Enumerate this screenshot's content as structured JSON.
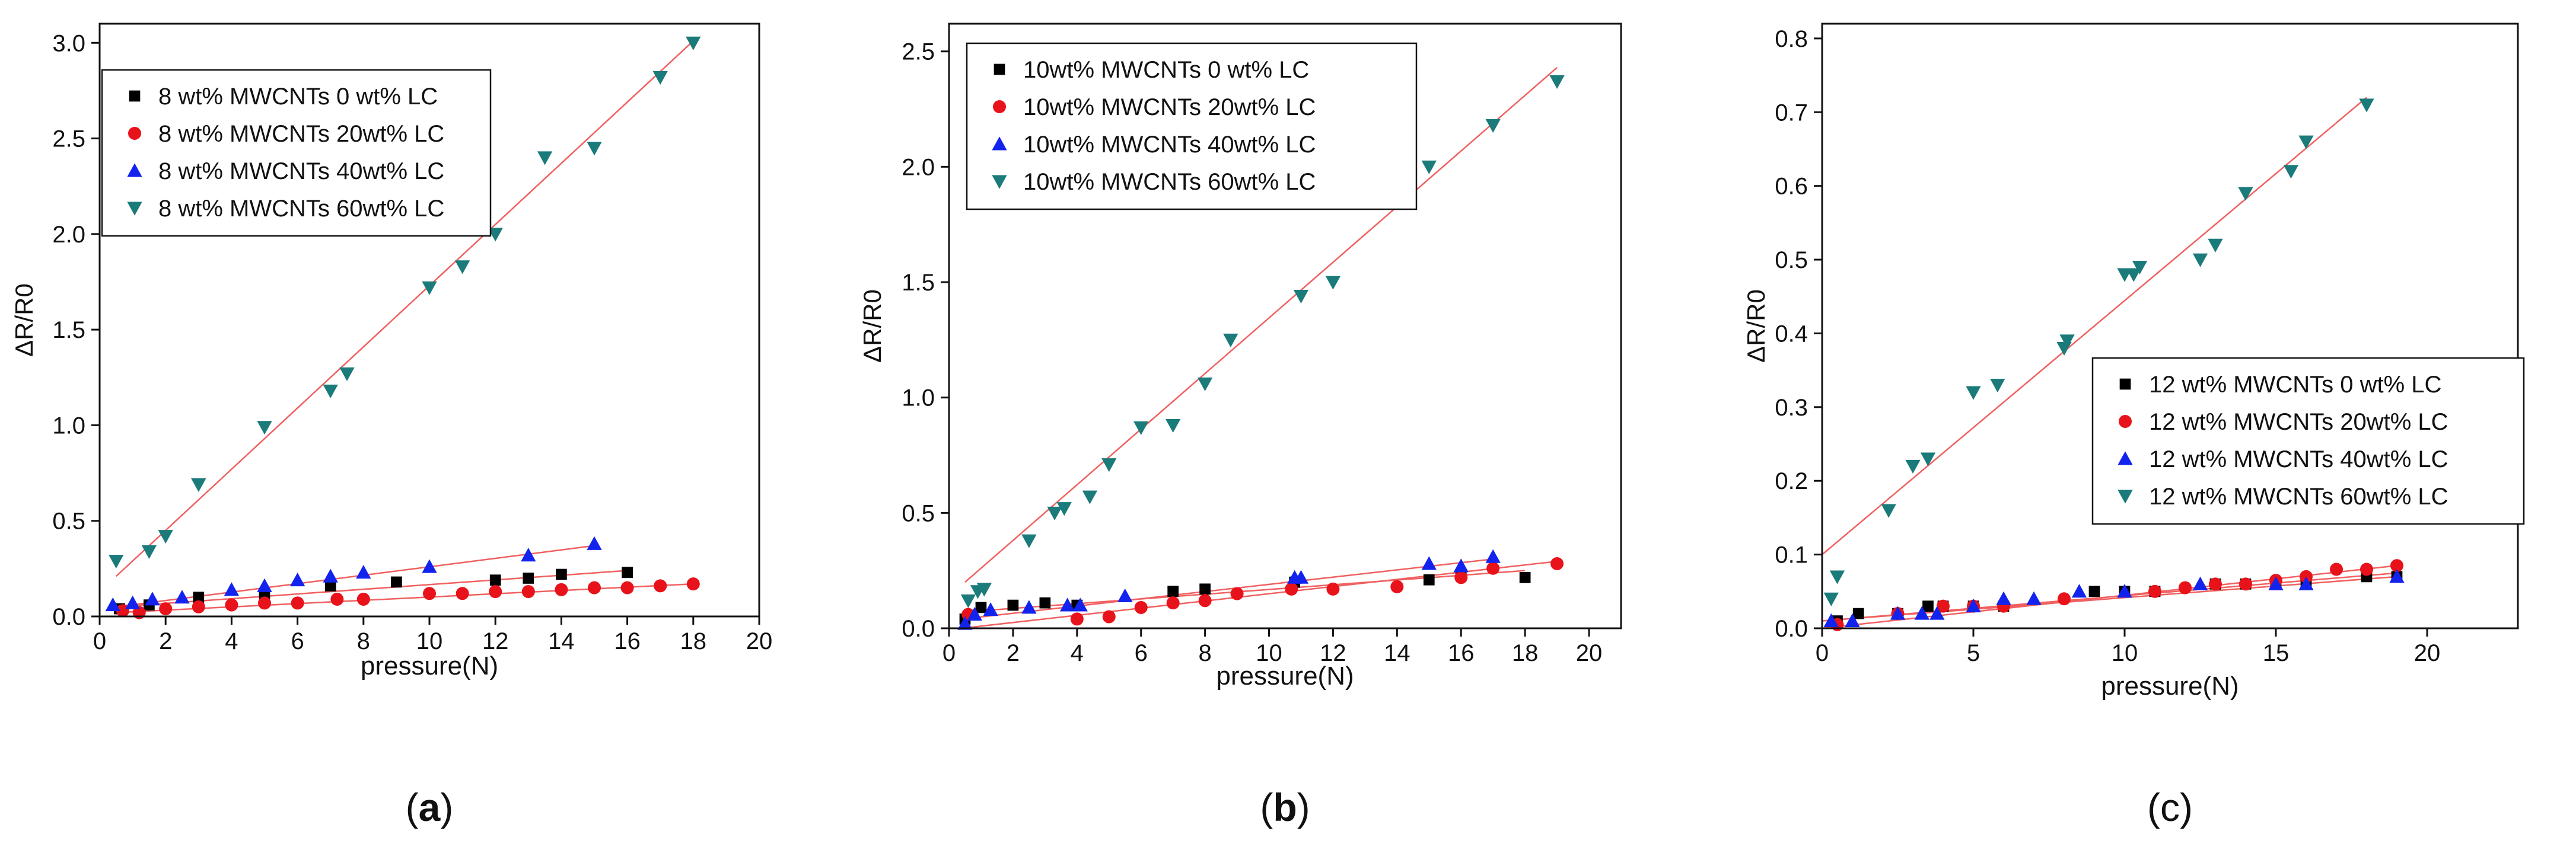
{
  "chart_data": [
    {
      "type": "scatter",
      "panel_label": "(a)",
      "panel_letter": "a",
      "xlabel": "pressure(N)",
      "ylabel": "ΔR/R0",
      "xlim": [
        0,
        20
      ],
      "ylim": [
        0,
        3.1
      ],
      "xticks": [
        0,
        2,
        4,
        6,
        8,
        10,
        12,
        14,
        16,
        18,
        20
      ],
      "yticks": [
        0.0,
        0.5,
        1.0,
        1.5,
        2.0,
        2.5,
        3.0
      ],
      "ytick_decimals": 1,
      "legend_position": "top-left",
      "series": [
        {
          "name": "8 wt% MWCNTs 0 wt%  LC",
          "marker": "square",
          "color": "#000000",
          "points": [
            [
              0.6,
              0.04
            ],
            [
              1.5,
              0.06
            ],
            [
              3,
              0.1
            ],
            [
              5,
              0.12
            ],
            [
              7,
              0.16
            ],
            [
              9,
              0.18
            ],
            [
              12,
              0.19
            ],
            [
              13,
              0.2
            ],
            [
              14,
              0.22
            ],
            [
              16,
              0.23
            ]
          ],
          "fit": [
            [
              0.5,
              0.05
            ],
            [
              16,
              0.24
            ]
          ]
        },
        {
          "name": "8 wt% MWCNTs 20wt% LC",
          "marker": "circle",
          "color": "#e8121a",
          "points": [
            [
              0.7,
              0.03
            ],
            [
              1.2,
              0.02
            ],
            [
              2,
              0.04
            ],
            [
              3,
              0.05
            ],
            [
              4,
              0.06
            ],
            [
              5,
              0.07
            ],
            [
              6,
              0.07
            ],
            [
              7.2,
              0.09
            ],
            [
              8,
              0.09
            ],
            [
              10,
              0.12
            ],
            [
              11,
              0.12
            ],
            [
              12,
              0.13
            ],
            [
              13,
              0.13
            ],
            [
              14,
              0.14
            ],
            [
              15,
              0.15
            ],
            [
              16,
              0.15
            ],
            [
              17,
              0.16
            ],
            [
              18,
              0.17
            ]
          ],
          "fit": [
            [
              0.5,
              0.02
            ],
            [
              18,
              0.17
            ]
          ]
        },
        {
          "name": "8 wt% MWCNTs 40wt% LC",
          "marker": "triangle",
          "color": "#1323ee",
          "points": [
            [
              0.4,
              0.06
            ],
            [
              1,
              0.07
            ],
            [
              1.6,
              0.09
            ],
            [
              2.5,
              0.1
            ],
            [
              4,
              0.14
            ],
            [
              5,
              0.16
            ],
            [
              6,
              0.19
            ],
            [
              7,
              0.21
            ],
            [
              8,
              0.23
            ],
            [
              10,
              0.26
            ],
            [
              13,
              0.32
            ],
            [
              15,
              0.38
            ]
          ],
          "fit": [
            [
              0.5,
              0.05
            ],
            [
              15,
              0.37
            ]
          ]
        },
        {
          "name": "8 wt% MWCNTs 60wt% LC",
          "marker": "triangle-down",
          "color": "#1b7a7a",
          "points": [
            [
              0.5,
              0.29
            ],
            [
              1.5,
              0.34
            ],
            [
              2,
              0.42
            ],
            [
              3,
              0.69
            ],
            [
              5,
              0.99
            ],
            [
              7,
              1.18
            ],
            [
              7.5,
              1.27
            ],
            [
              10,
              1.72
            ],
            [
              11,
              1.83
            ],
            [
              12,
              2.0
            ],
            [
              13.5,
              2.4
            ],
            [
              15,
              2.45
            ],
            [
              17,
              2.82
            ],
            [
              18,
              3.0
            ]
          ],
          "fit": [
            [
              0.5,
              0.21
            ],
            [
              18,
              3.01
            ]
          ]
        }
      ]
    },
    {
      "type": "scatter",
      "panel_label": "(b)",
      "panel_letter": "b",
      "xlabel": "pressure(N)",
      "ylabel": "ΔR/R0",
      "xlim": [
        0,
        21
      ],
      "ylim": [
        0,
        2.62
      ],
      "xticks": [
        0,
        2,
        4,
        6,
        8,
        10,
        12,
        14,
        16,
        18,
        20
      ],
      "yticks": [
        0.0,
        0.5,
        1.0,
        1.5,
        2.0,
        2.5
      ],
      "ytick_decimals": 1,
      "legend_position": "top-left",
      "series": [
        {
          "name": "10wt% MWCNTs 0 wt%  LC",
          "marker": "square",
          "color": "#000000",
          "points": [
            [
              0.5,
              0.04
            ],
            [
              1,
              0.09
            ],
            [
              2,
              0.1
            ],
            [
              3,
              0.11
            ],
            [
              4,
              0.1
            ],
            [
              7,
              0.16
            ],
            [
              8,
              0.17
            ],
            [
              10.8,
              0.2
            ],
            [
              15,
              0.21
            ],
            [
              16,
              0.23
            ],
            [
              18,
              0.22
            ]
          ],
          "fit": [
            [
              0.4,
              0.07
            ],
            [
              18,
              0.25
            ]
          ]
        },
        {
          "name": "10wt% MWCNTs 20wt% LC",
          "marker": "circle",
          "color": "#e8121a",
          "points": [
            [
              0.6,
              0.06
            ],
            [
              4,
              0.04
            ],
            [
              5,
              0.05
            ],
            [
              6,
              0.09
            ],
            [
              7,
              0.11
            ],
            [
              8,
              0.12
            ],
            [
              9,
              0.15
            ],
            [
              10.7,
              0.17
            ],
            [
              12,
              0.17
            ],
            [
              14,
              0.18
            ],
            [
              16,
              0.22
            ],
            [
              17,
              0.26
            ],
            [
              19,
              0.28
            ]
          ],
          "fit": [
            [
              0.4,
              0.0
            ],
            [
              19,
              0.29
            ]
          ]
        },
        {
          "name": "10wt% MWCNTs 40wt% LC",
          "marker": "triangle",
          "color": "#1323ee",
          "points": [
            [
              0.5,
              0.02
            ],
            [
              0.8,
              0.06
            ],
            [
              1.3,
              0.08
            ],
            [
              2.5,
              0.09
            ],
            [
              3.7,
              0.1
            ],
            [
              4.1,
              0.1
            ],
            [
              5.5,
              0.14
            ],
            [
              10.8,
              0.22
            ],
            [
              11,
              0.22
            ],
            [
              15,
              0.28
            ],
            [
              16,
              0.27
            ],
            [
              17,
              0.31
            ]
          ],
          "fit": [
            [
              0.4,
              0.04
            ],
            [
              17,
              0.3
            ]
          ]
        },
        {
          "name": "10wt% MWCNTs 60wt% LC",
          "marker": "triangle-down",
          "color": "#1b7a7a",
          "points": [
            [
              0.6,
              0.12
            ],
            [
              0.9,
              0.16
            ],
            [
              1.1,
              0.17
            ],
            [
              2.5,
              0.38
            ],
            [
              3.3,
              0.5
            ],
            [
              3.6,
              0.52
            ],
            [
              4.4,
              0.57
            ],
            [
              5,
              0.71
            ],
            [
              6,
              0.87
            ],
            [
              7,
              0.88
            ],
            [
              8,
              1.06
            ],
            [
              8.8,
              1.25
            ],
            [
              11,
              1.44
            ],
            [
              12,
              1.5
            ],
            [
              15,
              2.0
            ],
            [
              17,
              2.18
            ],
            [
              19,
              2.37
            ]
          ],
          "fit": [
            [
              0.5,
              0.2
            ],
            [
              19,
              2.43
            ]
          ]
        }
      ]
    },
    {
      "type": "scatter",
      "panel_label": "(c)",
      "panel_letter": "c",
      "xlabel": "pressure(N)",
      "ylabel": "ΔR/R0",
      "xlim": [
        0,
        23
      ],
      "ylim": [
        0,
        0.82
      ],
      "xticks": [
        0,
        5,
        10,
        15,
        20
      ],
      "yticks": [
        0.0,
        0.1,
        0.2,
        0.3,
        0.4,
        0.5,
        0.6,
        0.7,
        0.8
      ],
      "ytick_decimals": 1,
      "legend_position": "middle-right",
      "series": [
        {
          "name": "12 wt% MWCNTs 0  wt% LC",
          "marker": "square",
          "color": "#000000",
          "points": [
            [
              0.5,
              0.01
            ],
            [
              1.2,
              0.02
            ],
            [
              2.5,
              0.02
            ],
            [
              3.5,
              0.03
            ],
            [
              4,
              0.03
            ],
            [
              5,
              0.03
            ],
            [
              6,
              0.03
            ],
            [
              9,
              0.05
            ],
            [
              10,
              0.05
            ],
            [
              11,
              0.05
            ],
            [
              13,
              0.06
            ],
            [
              14,
              0.06
            ],
            [
              15,
              0.06
            ],
            [
              16,
              0.06
            ],
            [
              18,
              0.07
            ],
            [
              19,
              0.07
            ]
          ],
          "fit": [
            [
              0,
              0.01
            ],
            [
              19,
              0.075
            ]
          ]
        },
        {
          "name": "12 wt% MWCNTs 20wt% LC",
          "marker": "circle",
          "color": "#e8121a",
          "points": [
            [
              0.5,
              0.005
            ],
            [
              2.5,
              0.02
            ],
            [
              4,
              0.03
            ],
            [
              5,
              0.03
            ],
            [
              6,
              0.03
            ],
            [
              8,
              0.04
            ],
            [
              11,
              0.05
            ],
            [
              12,
              0.055
            ],
            [
              13,
              0.06
            ],
            [
              14,
              0.06
            ],
            [
              15,
              0.065
            ],
            [
              16,
              0.07
            ],
            [
              17,
              0.08
            ],
            [
              18,
              0.08
            ],
            [
              19,
              0.085
            ]
          ],
          "fit": [
            [
              0,
              0.0
            ],
            [
              19,
              0.085
            ]
          ]
        },
        {
          "name": "12 wt% MWCNTs 40wt% LC",
          "marker": "triangle",
          "color": "#1323ee",
          "points": [
            [
              0.3,
              0.01
            ],
            [
              1,
              0.01
            ],
            [
              2.5,
              0.02
            ],
            [
              3.3,
              0.02
            ],
            [
              3.8,
              0.02
            ],
            [
              5,
              0.03
            ],
            [
              6,
              0.04
            ],
            [
              7,
              0.04
            ],
            [
              8.5,
              0.05
            ],
            [
              10,
              0.05
            ],
            [
              12.5,
              0.06
            ],
            [
              15,
              0.06
            ],
            [
              16,
              0.06
            ],
            [
              19,
              0.07
            ]
          ],
          "fit": [
            [
              0,
              0.01
            ],
            [
              19,
              0.07
            ]
          ]
        },
        {
          "name": "12 wt% MWCNTs 60wt% LC",
          "marker": "triangle-down",
          "color": "#1b7a7a",
          "points": [
            [
              0.3,
              0.04
            ],
            [
              0.5,
              0.07
            ],
            [
              2.2,
              0.16
            ],
            [
              3,
              0.22
            ],
            [
              3.5,
              0.23
            ],
            [
              5,
              0.32
            ],
            [
              5.8,
              0.33
            ],
            [
              8,
              0.38
            ],
            [
              8.1,
              0.39
            ],
            [
              10,
              0.48
            ],
            [
              10.3,
              0.48
            ],
            [
              10.5,
              0.49
            ],
            [
              12.5,
              0.5
            ],
            [
              13,
              0.52
            ],
            [
              14,
              0.59
            ],
            [
              15.5,
              0.62
            ],
            [
              16,
              0.66
            ],
            [
              18,
              0.71
            ]
          ],
          "fit": [
            [
              0,
              0.1
            ],
            [
              18,
              0.72
            ]
          ]
        }
      ]
    }
  ]
}
